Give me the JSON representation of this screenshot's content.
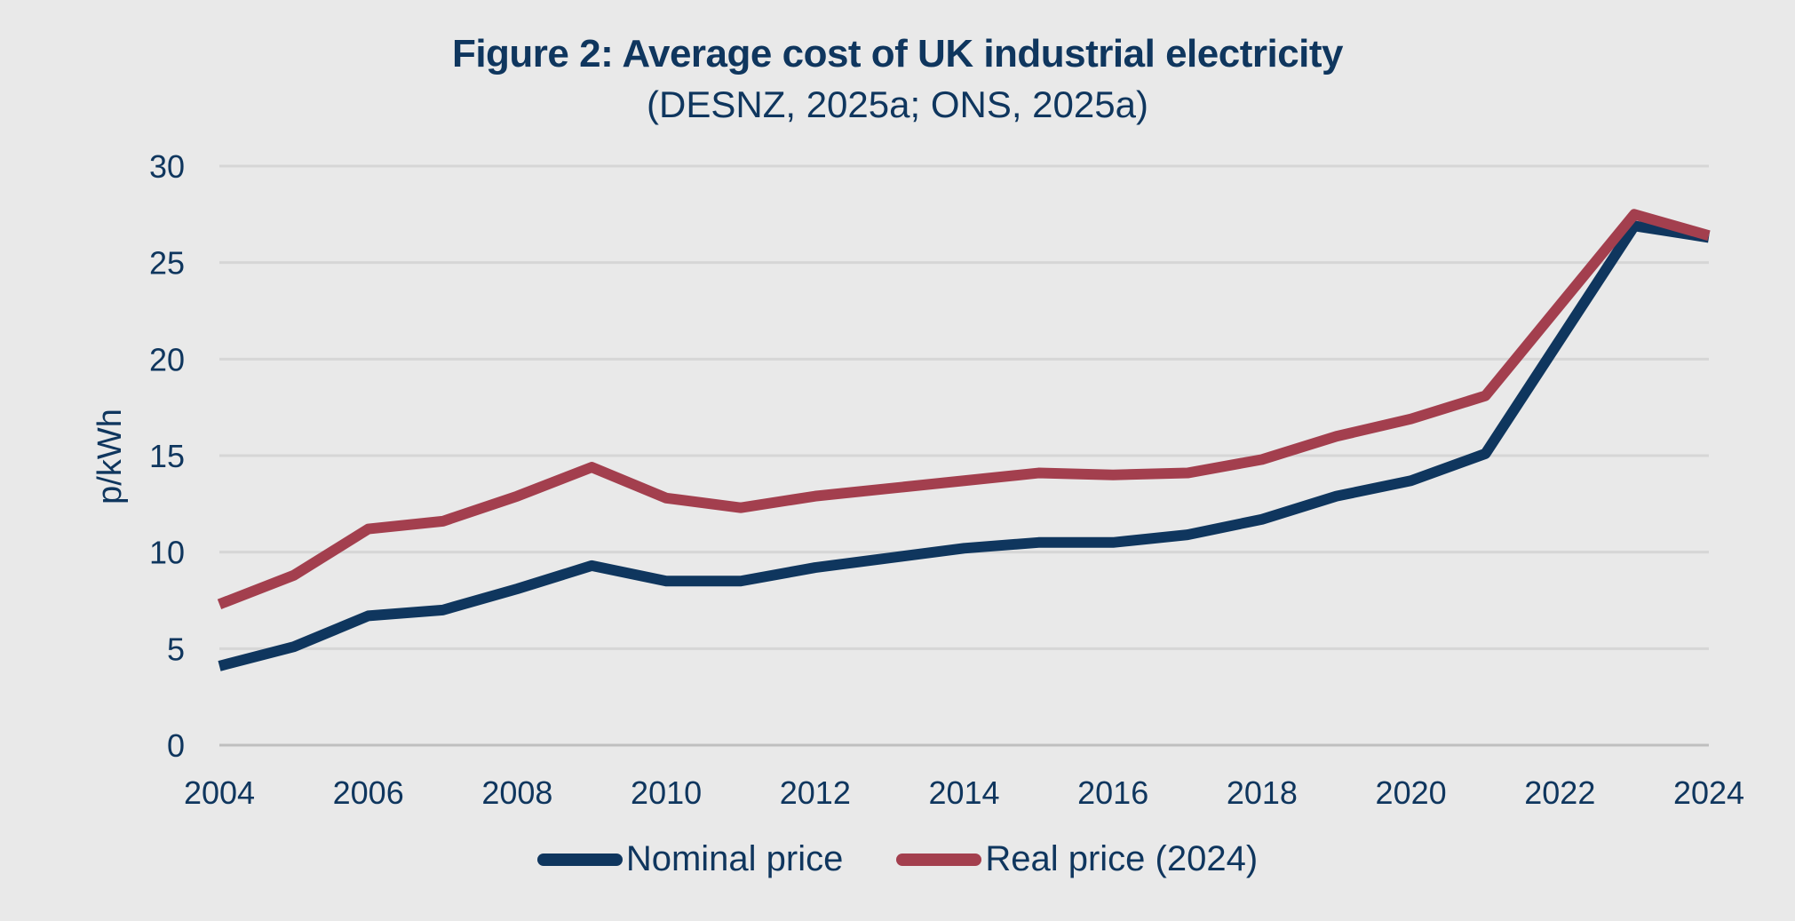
{
  "chart_data": {
    "type": "line",
    "title": "Figure 2: Average cost of UK industrial electricity",
    "subtitle": "(DESNZ, 2025a; ONS, 2025a)",
    "xlabel": "",
    "ylabel": "p/kWh",
    "x": [
      2004,
      2005,
      2006,
      2007,
      2008,
      2009,
      2010,
      2011,
      2012,
      2013,
      2014,
      2015,
      2016,
      2017,
      2018,
      2019,
      2020,
      2021,
      2022,
      2023,
      2024
    ],
    "xlim": [
      2004,
      2024
    ],
    "ylim": [
      0,
      30
    ],
    "x_ticks": [
      "2004",
      "2006",
      "2008",
      "2010",
      "2012",
      "2014",
      "2016",
      "2018",
      "2020",
      "2022",
      "2024"
    ],
    "y_ticks": [
      "0",
      "5",
      "10",
      "15",
      "20",
      "25",
      "30"
    ],
    "grid": "horizontal",
    "legend_position": "bottom-center",
    "series": [
      {
        "name": "Nominal price",
        "color": "#0f365e",
        "values": [
          4.1,
          5.1,
          6.7,
          7.0,
          8.1,
          9.3,
          8.5,
          8.5,
          9.2,
          9.7,
          10.2,
          10.5,
          10.5,
          10.9,
          11.7,
          12.9,
          13.7,
          15.1,
          21.0,
          26.9,
          26.3
        ]
      },
      {
        "name": "Real price (2024)",
        "color": "#a33f4e",
        "values": [
          7.3,
          8.8,
          11.2,
          11.6,
          12.9,
          14.4,
          12.8,
          12.3,
          12.9,
          13.3,
          13.7,
          14.1,
          14.0,
          14.1,
          14.8,
          16.0,
          16.9,
          18.1,
          22.8,
          27.5,
          26.4
        ]
      }
    ]
  },
  "colors": {
    "background": "#e9e9e9",
    "text": "#0f365e",
    "gridline": "#d6d6d6",
    "axis": "#bfbfbf"
  }
}
